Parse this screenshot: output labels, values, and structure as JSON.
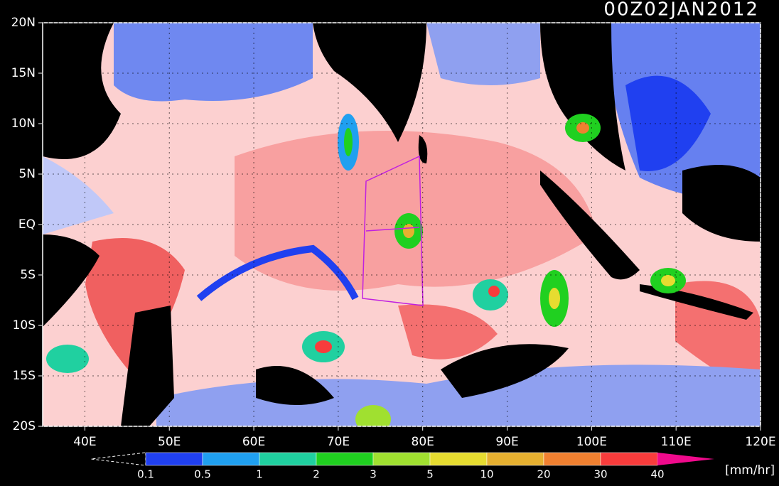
{
  "title": "00Z02JAN2012",
  "lon_range": [
    35,
    120
  ],
  "lat_range": [
    -20,
    20
  ],
  "lon_ticks": [
    {
      "value": 40,
      "label": "40E"
    },
    {
      "value": 50,
      "label": "50E"
    },
    {
      "value": 60,
      "label": "60E"
    },
    {
      "value": 70,
      "label": "70E"
    },
    {
      "value": 80,
      "label": "80E"
    },
    {
      "value": 90,
      "label": "90E"
    },
    {
      "value": 100,
      "label": "100E"
    },
    {
      "value": 110,
      "label": "110E"
    },
    {
      "value": 120,
      "label": "120E"
    }
  ],
  "lat_ticks": [
    {
      "value": 20,
      "label": "20N"
    },
    {
      "value": 15,
      "label": "15N"
    },
    {
      "value": 10,
      "label": "10N"
    },
    {
      "value": 5,
      "label": "5N"
    },
    {
      "value": 0,
      "label": "EQ"
    },
    {
      "value": -5,
      "label": "5S"
    },
    {
      "value": -10,
      "label": "10S"
    },
    {
      "value": -15,
      "label": "15S"
    },
    {
      "value": -20,
      "label": "20S"
    }
  ],
  "colorbar": {
    "labels": [
      "0.1",
      "0.5",
      "1",
      "2",
      "3",
      "5",
      "10",
      "20",
      "30",
      "40"
    ],
    "colors": [
      "#2040f0",
      "#20a0f0",
      "#20d0a0",
      "#20d020",
      "#a0e030",
      "#e6dc30",
      "#e6b030",
      "#f08030",
      "#f83c3c",
      "#f00a8c"
    ],
    "units": "[mm/hr]"
  }
}
